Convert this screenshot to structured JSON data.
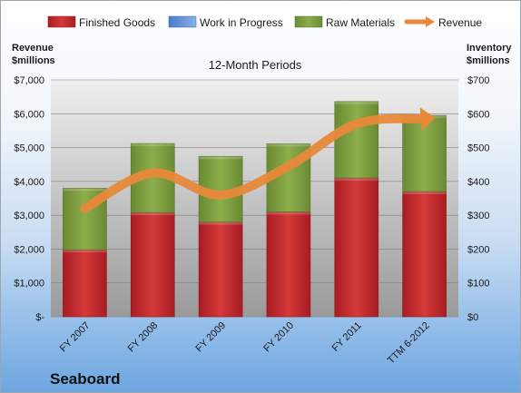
{
  "chart_data": {
    "type": "bar",
    "title": "12-Month Periods",
    "company": "Seaboard",
    "left_axis_title": [
      "Revenue",
      "$millions"
    ],
    "right_axis_title": [
      "Inventory",
      "$millions"
    ],
    "left_ticks": [
      "$-",
      "$1,000",
      "$2,000",
      "$3,000",
      "$4,000",
      "$5,000",
      "$6,000",
      "$7,000"
    ],
    "right_ticks": [
      "$0",
      "$100",
      "$200",
      "$300",
      "$400",
      "$500",
      "$600",
      "$700"
    ],
    "left_ylim": [
      0,
      7000
    ],
    "right_ylim": [
      0,
      700
    ],
    "categories": [
      "FY 2007",
      "FY 2008",
      "FY 2009",
      "FY 2010",
      "FY 2011",
      "TTM 6-2012"
    ],
    "series": [
      {
        "name": "Finished Goods",
        "kind": "stacked-bar",
        "axis": "right",
        "color": "#c8262b",
        "values": [
          198,
          308,
          280,
          310,
          410,
          370
        ]
      },
      {
        "name": "Work in Progress",
        "kind": "stacked-bar",
        "axis": "right",
        "color": "#5b8dd6",
        "values": [
          0,
          0,
          0,
          0,
          0,
          0
        ]
      },
      {
        "name": "Raw Materials",
        "kind": "stacked-bar",
        "axis": "right",
        "color": "#7fa13f",
        "values": [
          182,
          204,
          194,
          201,
          226,
          225
        ]
      },
      {
        "name": "Revenue",
        "kind": "line",
        "axis": "left",
        "color": "#e8893a",
        "values": [
          3200,
          4250,
          3600,
          4450,
          5700,
          5850
        ]
      }
    ],
    "legend_position": "top",
    "grid": true
  }
}
